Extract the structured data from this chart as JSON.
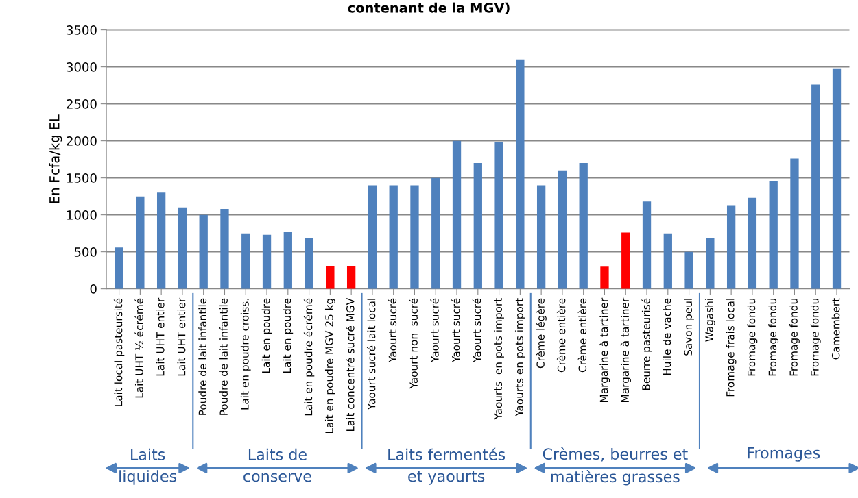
{
  "chart_data": {
    "type": "bar",
    "title": "contenant de la MGV)",
    "ylabel": "En Fcfa/kg EL",
    "categories": [
      "Lait local pasteursité",
      "Lait UHT ½ écrémé",
      "Lait UHT entier",
      "Lait UHT entier",
      "Poudre de lait infantile",
      "Poudre de lait infantile",
      "Lait en poudre croiss.",
      "Lait en poudre",
      "Lait en poudre",
      "Lait en poudre écrémé",
      "Lait en poudre MGV 25 kg",
      "Lait concentré sucré MGV",
      "Yaourt sucré lait local",
      "Yaourt sucré",
      "Yaourt non  sucré",
      "Yaourt sucré",
      "Yaourt sucré",
      "Yaourt sucré",
      "Yaourts  en pots import",
      "Yaourts en pots import",
      "Crème légère",
      "Crème entière",
      "Crème entière",
      "Margarine à tartiner",
      "Margarine à tartiner",
      "Beurre pasteurisé",
      "Huile de vache",
      "Savon peul",
      "Wagashi",
      "Fromage frais local",
      "Fromage fondu",
      "Fromage fondu",
      "Fromage fondu",
      "Fromage fondu",
      "Camembert"
    ],
    "values": [
      560,
      1250,
      1300,
      1100,
      1000,
      1080,
      750,
      730,
      770,
      690,
      310,
      310,
      1400,
      1400,
      1400,
      1500,
      2000,
      1700,
      1980,
      3100,
      1400,
      1600,
      1700,
      300,
      760,
      1180,
      750,
      500,
      690,
      1130,
      1230,
      1460,
      1760,
      2760,
      2980
    ],
    "colors": [
      "#4f81bd",
      "#4f81bd",
      "#4f81bd",
      "#4f81bd",
      "#4f81bd",
      "#4f81bd",
      "#4f81bd",
      "#4f81bd",
      "#4f81bd",
      "#4f81bd",
      "#ff0000",
      "#ff0000",
      "#4f81bd",
      "#4f81bd",
      "#4f81bd",
      "#4f81bd",
      "#4f81bd",
      "#4f81bd",
      "#4f81bd",
      "#4f81bd",
      "#4f81bd",
      "#4f81bd",
      "#4f81bd",
      "#ff0000",
      "#ff0000",
      "#4f81bd",
      "#4f81bd",
      "#4f81bd",
      "#4f81bd",
      "#4f81bd",
      "#4f81bd",
      "#4f81bd",
      "#4f81bd",
      "#4f81bd",
      "#4f81bd"
    ],
    "ylim": [
      0,
      3500
    ],
    "yticks": [
      0,
      500,
      1000,
      1500,
      2000,
      2500,
      3000,
      3500
    ],
    "grid": "y",
    "annotations": [
      "Laits\nliquides",
      "Laits de\nconserve",
      "Laits fermentés\net yaourts",
      "Crèmes, beurres et\nmatières grasses",
      "Fromages"
    ]
  }
}
